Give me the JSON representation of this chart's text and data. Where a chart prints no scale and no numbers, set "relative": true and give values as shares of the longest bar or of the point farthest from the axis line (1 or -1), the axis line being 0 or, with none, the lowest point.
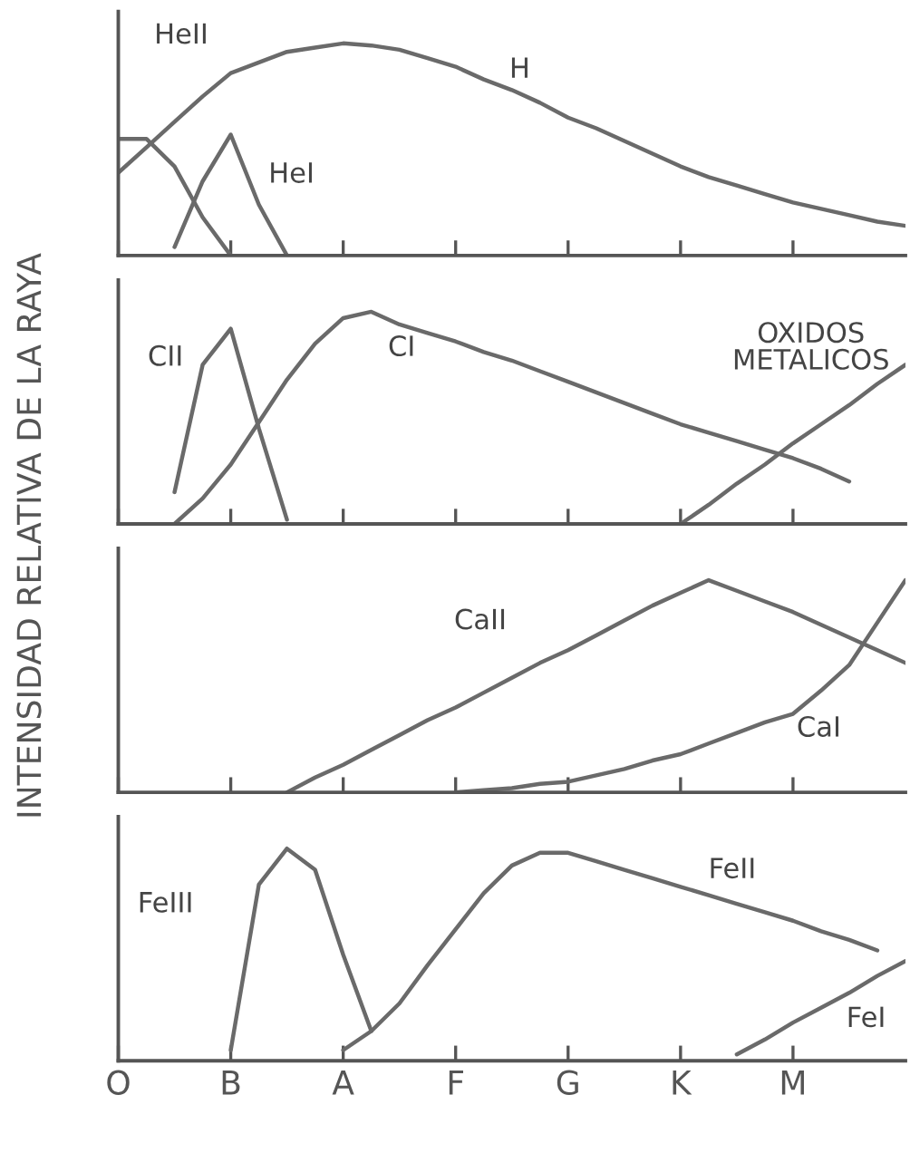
{
  "chart_data": [
    {
      "type": "line",
      "relative": true,
      "ylabel": "INTENSIDAD RELATIVA DE LA RAYA",
      "categories": [
        null,
        null,
        null,
        null,
        null,
        null,
        null,
        null,
        null,
        null,
        null,
        null,
        null,
        null,
        null,
        null,
        null,
        null,
        null,
        null,
        null,
        null,
        null,
        null,
        null,
        null,
        null,
        null,
        null
      ],
      "tick_labels": false,
      "series": [
        {
          "color": "#6a6a6a",
          "values": [
            0.39,
            0.51,
            0.63,
            0.75,
            0.86,
            0.91,
            0.96,
            0.98,
            1.0,
            0.99,
            0.97,
            0.93,
            0.89,
            0.83,
            0.78,
            0.72,
            0.65,
            0.6,
            0.54,
            0.48,
            0.42,
            0.37,
            0.33,
            0.29,
            0.25,
            0.22,
            0.19,
            0.16,
            0.14
          ]
        },
        {
          "color": "#6a6a6a",
          "values": [
            0.55,
            0.55,
            0.42,
            0.18,
            0,
            null,
            null,
            null,
            null,
            null,
            null,
            null,
            null,
            null,
            null,
            null,
            null,
            null,
            null,
            null,
            null,
            null,
            null,
            null,
            null,
            null,
            null,
            null,
            null
          ]
        },
        {
          "color": "#6a6a6a",
          "values": [
            null,
            null,
            0.04,
            0.35,
            0.57,
            0.24,
            0,
            null,
            null,
            null,
            null,
            null,
            null,
            null,
            null,
            null,
            null,
            null,
            null,
            null,
            null,
            null,
            null,
            null,
            null,
            null,
            null,
            null,
            null
          ]
        }
      ],
      "annotations": [
        "HeII",
        "HeI",
        "H"
      ]
    },
    {
      "type": "line",
      "relative": true,
      "categories": [
        null,
        null,
        null,
        null,
        null,
        null,
        null,
        null,
        null,
        null,
        null,
        null,
        null,
        null,
        null,
        null,
        null,
        null,
        null,
        null,
        null,
        null,
        null,
        null,
        null,
        null,
        null,
        null,
        null
      ],
      "tick_labels": false,
      "series": [
        {
          "color": "#6a6a6a",
          "values": [
            null,
            null,
            0,
            0.12,
            0.28,
            0.48,
            0.68,
            0.85,
            0.97,
            1.0,
            0.94,
            0.9,
            0.86,
            0.81,
            0.77,
            0.72,
            0.67,
            0.62,
            0.57,
            0.52,
            0.47,
            0.43,
            0.39,
            0.35,
            0.31,
            0.26,
            0.2,
            null,
            null
          ]
        },
        {
          "color": "#6a6a6a",
          "values": [
            null,
            null,
            0.15,
            0.75,
            0.92,
            0.45,
            0.02,
            null,
            null,
            null,
            null,
            null,
            null,
            null,
            null,
            null,
            null,
            null,
            null,
            null,
            null,
            null,
            null,
            null,
            null,
            null,
            null,
            null,
            null
          ]
        },
        {
          "color": "#6a6a6a",
          "values": [
            null,
            null,
            null,
            null,
            null,
            null,
            null,
            null,
            null,
            null,
            null,
            null,
            null,
            null,
            null,
            null,
            null,
            null,
            null,
            null,
            0,
            0.09,
            0.19,
            0.28,
            0.38,
            0.47,
            0.56,
            0.66,
            0.75
          ]
        }
      ],
      "annotations": [
        "CII",
        "CI",
        "OXIDOS\nMETALICOS"
      ]
    },
    {
      "type": "line",
      "relative": true,
      "categories": [
        null,
        null,
        null,
        null,
        null,
        null,
        null,
        null,
        null,
        null,
        null,
        null,
        null,
        null,
        null,
        null,
        null,
        null,
        null,
        null,
        null,
        null,
        null,
        null,
        null,
        null,
        null,
        null,
        null
      ],
      "tick_labels": false,
      "series": [
        {
          "color": "#6a6a6a",
          "values": [
            null,
            null,
            null,
            null,
            null,
            null,
            0,
            0.07,
            0.13,
            0.2,
            0.27,
            0.34,
            0.4,
            0.47,
            0.54,
            0.61,
            0.67,
            0.74,
            0.81,
            0.88,
            0.94,
            1.0,
            0.95,
            0.9,
            0.85,
            0.79,
            0.73,
            0.67,
            0.61
          ]
        },
        {
          "color": "#6a6a6a",
          "values": [
            null,
            null,
            null,
            null,
            null,
            null,
            null,
            null,
            null,
            null,
            null,
            null,
            0,
            0.01,
            0.02,
            0.04,
            0.05,
            0.08,
            0.11,
            0.15,
            0.18,
            0.23,
            0.28,
            0.33,
            0.37,
            0.48,
            0.6,
            0.8,
            1.0
          ]
        }
      ],
      "annotations": [
        "CaII",
        "CaI"
      ]
    },
    {
      "type": "line",
      "relative": true,
      "categories": [
        "O",
        null,
        null,
        null,
        "B",
        null,
        null,
        null,
        "A",
        null,
        null,
        null,
        "F",
        null,
        null,
        null,
        "G",
        null,
        null,
        null,
        "K",
        null,
        null,
        null,
        "M",
        null,
        null,
        null,
        null
      ],
      "tick_labels": "x",
      "series": [
        {
          "color": "#6a6a6a",
          "values": [
            null,
            null,
            null,
            null,
            0.05,
            0.83,
            1.0,
            0.9,
            0.5,
            0.14,
            null,
            null,
            null,
            null,
            null,
            null,
            null,
            null,
            null,
            null,
            null,
            null,
            null,
            null,
            null,
            null,
            null,
            null,
            null
          ]
        },
        {
          "color": "#6a6a6a",
          "values": [
            null,
            null,
            null,
            null,
            null,
            null,
            null,
            null,
            0.05,
            0.14,
            0.27,
            0.45,
            0.62,
            0.79,
            0.92,
            0.98,
            0.98,
            0.94,
            0.9,
            0.86,
            0.82,
            0.78,
            0.74,
            0.7,
            0.66,
            0.61,
            0.57,
            0.52,
            null
          ]
        },
        {
          "color": "#6a6a6a",
          "values": [
            null,
            null,
            null,
            null,
            null,
            null,
            null,
            null,
            null,
            null,
            null,
            null,
            null,
            null,
            null,
            null,
            null,
            null,
            null,
            null,
            null,
            null,
            0.03,
            0.1,
            0.18,
            0.25,
            0.32,
            0.4,
            0.47
          ]
        }
      ],
      "annotations": [
        "FeIII",
        "FeII",
        "FeI"
      ]
    }
  ]
}
